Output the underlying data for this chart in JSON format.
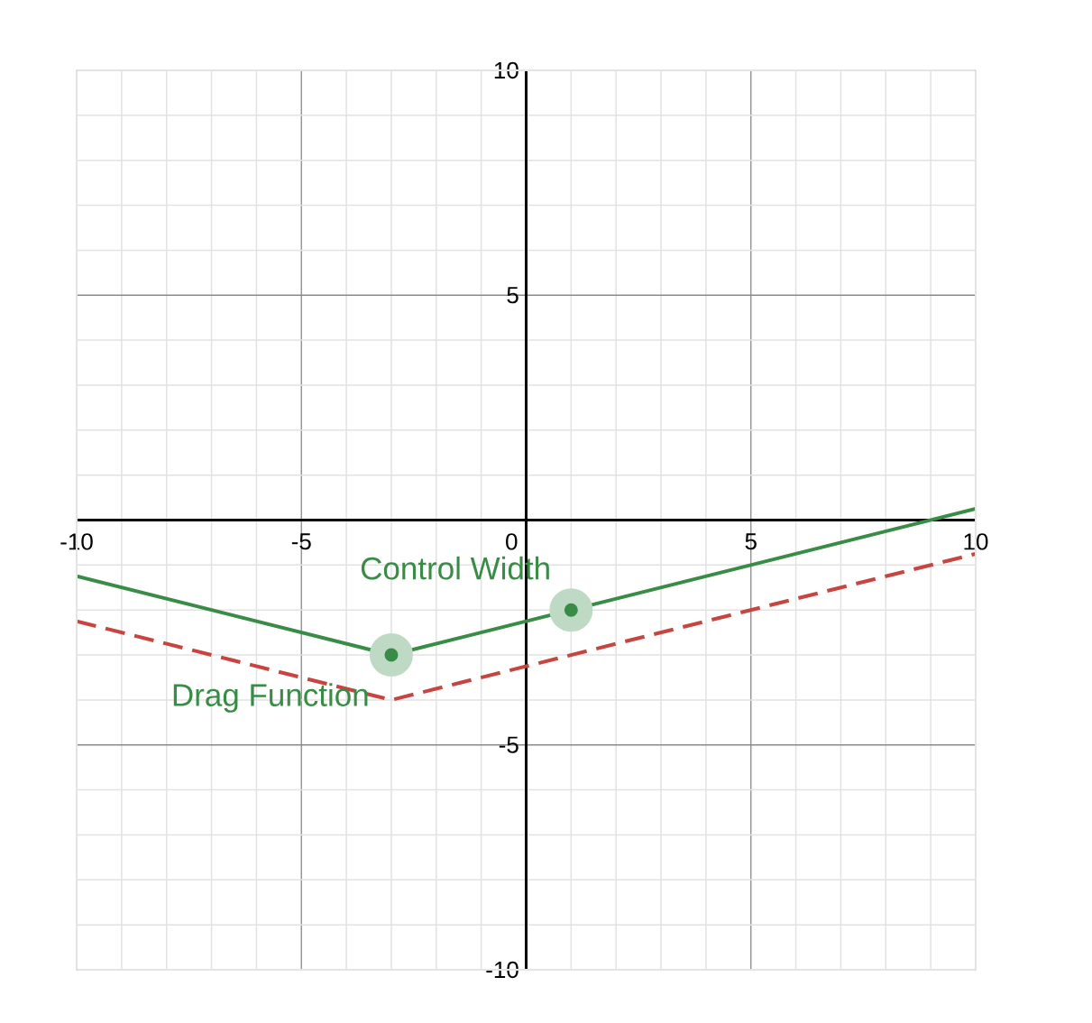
{
  "chart_data": {
    "type": "line",
    "xlim": [
      -10,
      10
    ],
    "ylim": [
      -10,
      10
    ],
    "xticks": [
      -10,
      -5,
      0,
      5,
      10
    ],
    "yticks": [
      -10,
      -5,
      {
        "value": 0,
        "label": null
      },
      5,
      10
    ],
    "grid": true,
    "series": [
      {
        "type": "scatter",
        "color": "#388c46",
        "x": [
          -3,
          1
        ],
        "values": [
          -3,
          -2
        ],
        "marker": "circle"
      },
      {
        "color": "#388c46",
        "x": [
          -10,
          -3,
          10
        ],
        "values": [
          -1.25,
          -3,
          0.25
        ],
        "line_style": "solid",
        "marker": "none"
      },
      {
        "color": "#c74440",
        "x": [
          -10,
          -3,
          10
        ],
        "values": [
          -2.25,
          -4,
          -0.75
        ],
        "line_style": "dashed",
        "marker": "none"
      }
    ],
    "annotations": [
      {
        "text": "Control Width",
        "x": 1,
        "y": -2
      },
      {
        "text": "Drag Function",
        "x": -3,
        "y": -3
      }
    ]
  }
}
